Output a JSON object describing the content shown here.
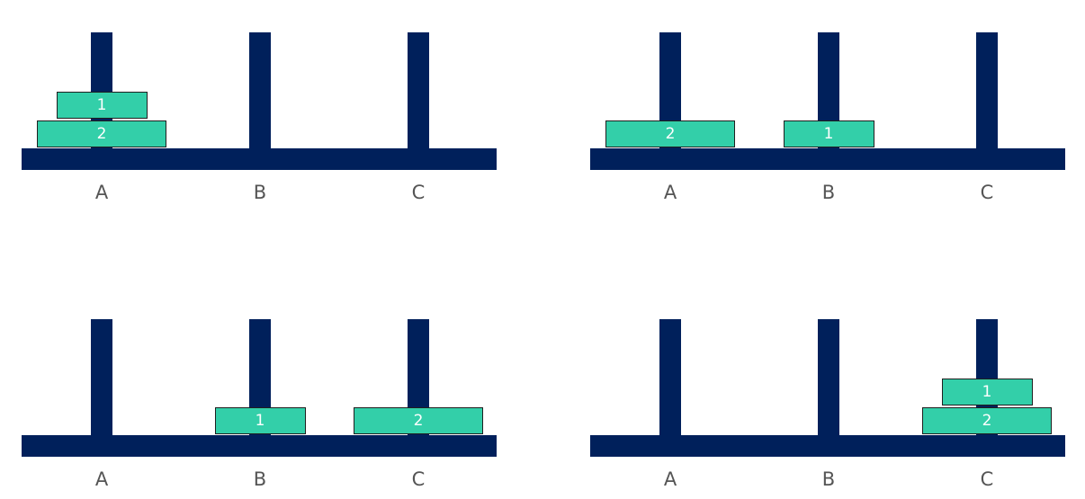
{
  "colors": {
    "peg_and_base": "#00205b",
    "disk_fill": "#33cfa9",
    "disk_text": "#ffffff",
    "label_text": "#555555"
  },
  "states": [
    {
      "pegs": [
        "A",
        "B",
        "C"
      ],
      "stacks": {
        "A": [
          "2",
          "1"
        ],
        "B": [],
        "C": []
      }
    },
    {
      "pegs": [
        "A",
        "B",
        "C"
      ],
      "stacks": {
        "A": [
          "2"
        ],
        "B": [
          "1"
        ],
        "C": []
      }
    },
    {
      "pegs": [
        "A",
        "B",
        "C"
      ],
      "stacks": {
        "A": [],
        "B": [
          "1"
        ],
        "C": [
          "2"
        ]
      }
    },
    {
      "pegs": [
        "A",
        "B",
        "C"
      ],
      "stacks": {
        "A": [],
        "B": [],
        "C": [
          "2",
          "1"
        ]
      }
    }
  ]
}
